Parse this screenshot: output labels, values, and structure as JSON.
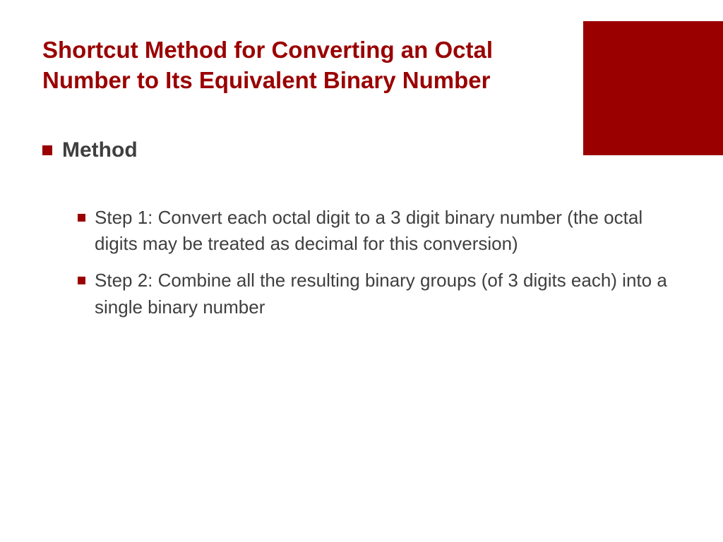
{
  "colors": {
    "accent": "#9a0000",
    "title": "#9a0000",
    "body_text": "#3f3f3f",
    "background": "#ffffff"
  },
  "typography": {
    "title_fontsize": 33,
    "heading_fontsize": 30,
    "body_fontsize": 26
  },
  "title": "Shortcut Method for Converting an Octal Number to Its Equivalent Binary Number",
  "method": {
    "heading": "Method",
    "steps": [
      "Step 1: Convert each octal digit to a 3 digit binary number (the octal digits may be treated as decimal for this conversion)",
      "Step 2: Combine all the resulting binary groups (of 3 digits each) into a single binary number"
    ]
  }
}
